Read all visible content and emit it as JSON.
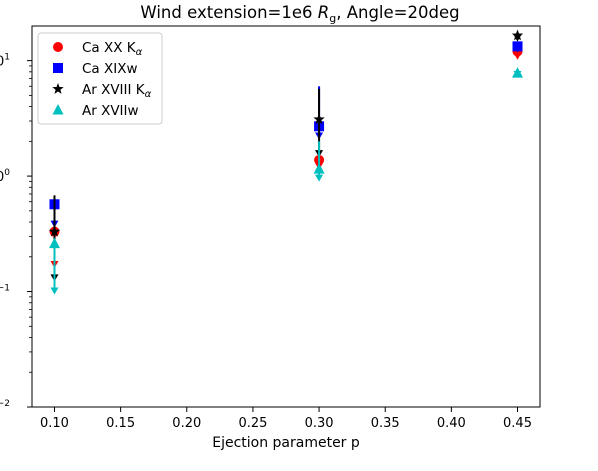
{
  "chart_data": {
    "type": "scatter",
    "title_prefix": "Wind extension=1e6 ",
    "title_symbol": "R",
    "title_subscript": "g",
    "title_suffix": ", Angle=20deg",
    "xlabel": "Ejection parameter p",
    "ylabel": "",
    "xlim": [
      0.083,
      0.467
    ],
    "ylim_log10": [
      -2,
      1.3
    ],
    "y_scale": "log",
    "grid": false,
    "legend_position": "top-left",
    "x_ticks": [
      {
        "value": 0.1,
        "label": "0.10"
      },
      {
        "value": 0.15,
        "label": "0.15"
      },
      {
        "value": 0.2,
        "label": "0.20"
      },
      {
        "value": 0.25,
        "label": "0.25"
      },
      {
        "value": 0.3,
        "label": "0.30"
      },
      {
        "value": 0.35,
        "label": "0.35"
      },
      {
        "value": 0.4,
        "label": "0.40"
      },
      {
        "value": 0.45,
        "label": "0.45"
      }
    ],
    "y_ticks": [
      {
        "exp": 1,
        "label": "10",
        "sup": "1"
      },
      {
        "exp": 0,
        "label": "10",
        "sup": "0"
      },
      {
        "exp": -1,
        "label": "10",
        "sup": "−1"
      },
      {
        "exp": -2,
        "label": "10",
        "sup": "−2"
      }
    ],
    "series": [
      {
        "label_main": "Ca XX K",
        "label_sub": "α",
        "color": "#ff0000",
        "marker": "circle",
        "points": [
          {
            "x": 0.1,
            "y": 0.33,
            "err_low": 0.17,
            "err_high": 0.55
          },
          {
            "x": 0.3,
            "y": 1.38,
            "err_low": 1.2,
            "err_high": 1.55
          },
          {
            "x": 0.45,
            "y": 12.0,
            "err_low": 10.8,
            "err_high": 13.0
          }
        ]
      },
      {
        "label_main": "Ca XIXw",
        "label_sub": "",
        "color": "#0000ff",
        "marker": "square",
        "points": [
          {
            "x": 0.1,
            "y": 0.57,
            "err_low": 0.38,
            "err_high": 0.6
          },
          {
            "x": 0.3,
            "y": 2.7,
            "err_low": 2.2,
            "err_high": 6.0
          },
          {
            "x": 0.45,
            "y": 13.3,
            "err_low": 12.5,
            "err_high": 14.0
          }
        ]
      },
      {
        "label_main": "Ar XVIII K",
        "label_sub": "α",
        "color": "#000000",
        "marker": "star",
        "points": [
          {
            "x": 0.1,
            "y": 0.33,
            "err_low": 0.13,
            "err_high": 0.68
          },
          {
            "x": 0.3,
            "y": 3.1,
            "err_low": 1.55,
            "err_high": 5.7
          },
          {
            "x": 0.45,
            "y": 16.5,
            "err_low": 15.5,
            "err_high": 17.5
          }
        ]
      },
      {
        "label_main": "Ar XVIIw",
        "label_sub": "",
        "color": "#00bfbf",
        "marker": "triangle",
        "points": [
          {
            "x": 0.1,
            "y": 0.26,
            "err_low": 0.1,
            "err_high": 0.27
          },
          {
            "x": 0.3,
            "y": 1.15,
            "err_low": 0.95,
            "err_high": 2.0
          },
          {
            "x": 0.45,
            "y": 7.8,
            "err_low": 7.5,
            "err_high": 8.1
          }
        ]
      }
    ]
  }
}
